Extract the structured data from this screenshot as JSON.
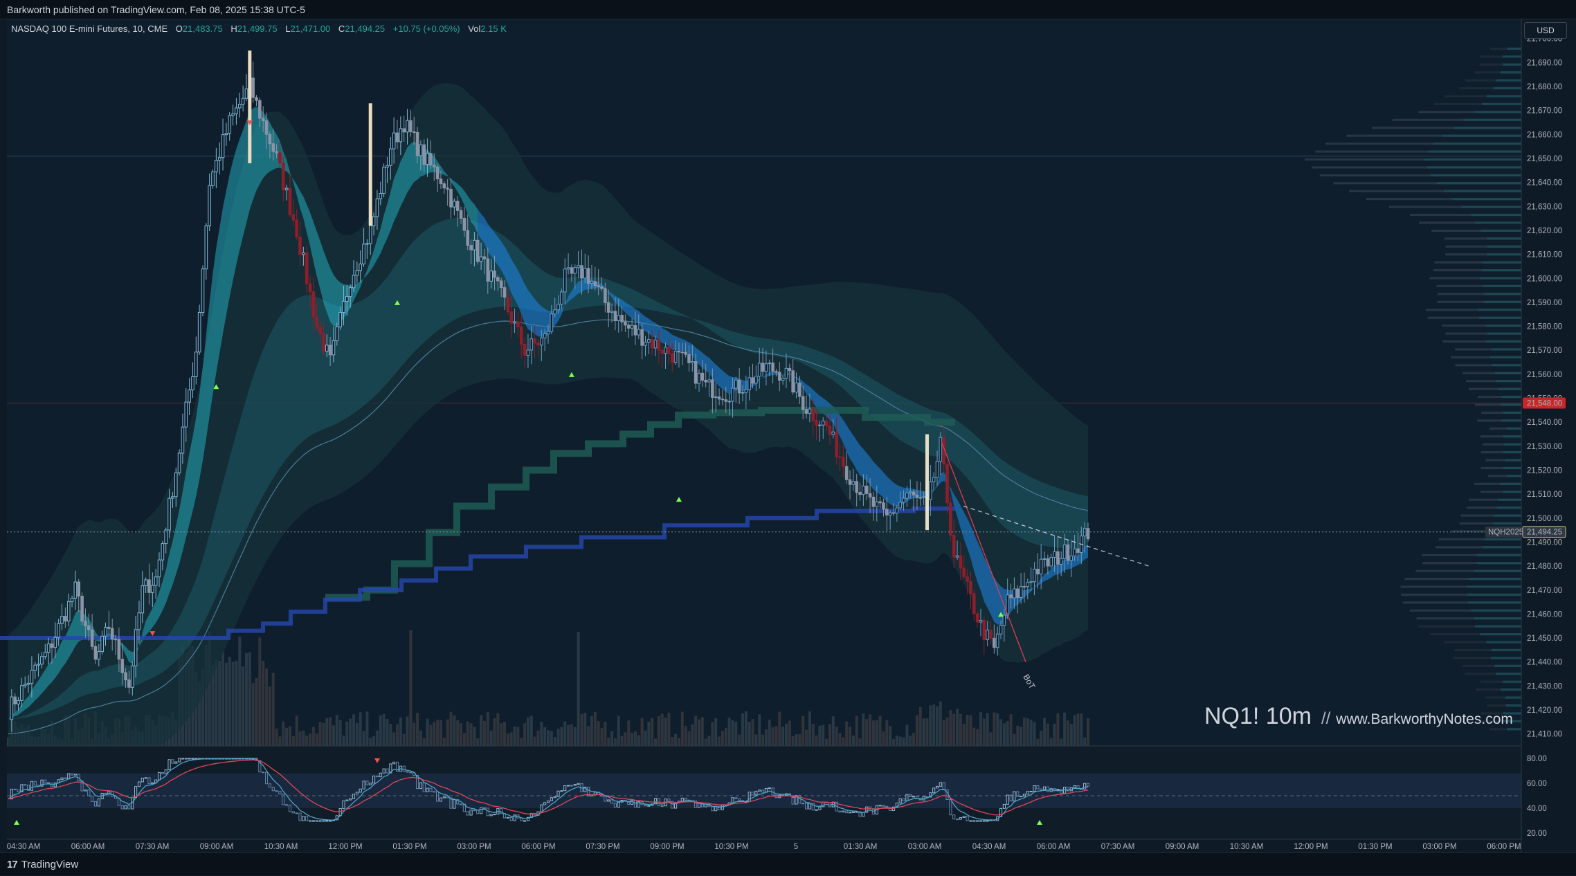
{
  "header": {
    "published": "Barkworth published on TradingView.com, Feb 08, 2025 15:38 UTC-5"
  },
  "legend": {
    "symbol": "NASDAQ 100 E-mini Futures, 10, CME",
    "o_label": "O",
    "o": "21,483.75",
    "h_label": "H",
    "h": "21,499.75",
    "l_label": "L",
    "l": "21,471.00",
    "c_label": "C",
    "c": "21,494.25",
    "change": "+10.75 (+0.05%)",
    "vol_label": "Vol",
    "vol": "2.15 K"
  },
  "currency_button": "USD",
  "watermark": {
    "title": "NQ1! 10m",
    "separator": "//",
    "site": "www.BarkworthyNotes.com"
  },
  "footer": {
    "logo": "17",
    "brand": "TradingView"
  },
  "colors": {
    "background": "#0f1a27",
    "up": "#26c6da",
    "down": "#b71c1c",
    "band_fast": "#1e88e5",
    "band_slow": "#26a69a",
    "last_price_tag": "#c62828"
  },
  "chart_data": [
    {
      "type": "line",
      "subtype": "candlestick",
      "title": "",
      "x_ticks": [
        "04:30 AM",
        "06:00 AM",
        "07:30 AM",
        "09:00 AM",
        "10:30 AM",
        "12:00 PM",
        "01:30 PM",
        "03:00 PM",
        "06:00 PM",
        "07:30 PM",
        "09:00 PM",
        "10:30 PM",
        "5",
        "01:30 AM",
        "03:00 AM",
        "04:30 AM",
        "06:00 AM",
        "07:30 AM",
        "09:00 AM",
        "10:30 AM",
        "12:00 PM",
        "01:30 PM",
        "03:00 PM",
        "06:00 PM"
      ],
      "y_ticks": [
        21700,
        21690,
        21680,
        21670,
        21660,
        21650,
        21640,
        21630,
        21620,
        21610,
        21600,
        21590,
        21580,
        21570,
        21560,
        21550,
        21540,
        21530,
        21520,
        21510,
        21500,
        21490,
        21480,
        21470,
        21460,
        21450,
        21440,
        21430,
        21420,
        21410
      ],
      "y_tick_labels": [
        "21,700.00",
        "21,690.00",
        "21,680.00",
        "21,670.00",
        "21,660.00",
        "21,650.00",
        "21,640.00",
        "21,630.00",
        "21,620.00",
        "21,610.00",
        "21,600.00",
        "21,590.00",
        "21,580.00",
        "21,570.00",
        "21,560.00",
        "21,550.00",
        "21,540.00",
        "21,530.00",
        "21,520.00",
        "21,510.00",
        "21,500.00",
        "21,490.00",
        "21,480.00",
        "21,470.00",
        "21,460.00",
        "21,450.00",
        "21,440.00",
        "21,430.00",
        "21,420.00",
        "21,410.00"
      ],
      "ylim": [
        21405,
        21708
      ],
      "price_path": [
        [
          0,
          21420
        ],
        [
          12,
          21445
        ],
        [
          20,
          21470
        ],
        [
          26,
          21440
        ],
        [
          30,
          21455
        ],
        [
          36,
          21430
        ],
        [
          40,
          21470
        ],
        [
          44,
          21475
        ],
        [
          50,
          21520
        ],
        [
          56,
          21570
        ],
        [
          60,
          21640
        ],
        [
          66,
          21665
        ],
        [
          72,
          21680
        ],
        [
          80,
          21650
        ],
        [
          86,
          21620
        ],
        [
          92,
          21580
        ],
        [
          96,
          21565
        ],
        [
          102,
          21600
        ],
        [
          108,
          21620
        ],
        [
          114,
          21655
        ],
        [
          118,
          21665
        ],
        [
          124,
          21650
        ],
        [
          130,
          21640
        ],
        [
          136,
          21620
        ],
        [
          142,
          21605
        ],
        [
          148,
          21590
        ],
        [
          154,
          21570
        ],
        [
          160,
          21575
        ],
        [
          166,
          21600
        ],
        [
          172,
          21603
        ],
        [
          178,
          21590
        ],
        [
          184,
          21580
        ],
        [
          190,
          21575
        ],
        [
          196,
          21570
        ],
        [
          202,
          21565
        ],
        [
          208,
          21555
        ],
        [
          214,
          21552
        ],
        [
          220,
          21556
        ],
        [
          226,
          21563
        ],
        [
          232,
          21560
        ],
        [
          238,
          21546
        ],
        [
          244,
          21538
        ],
        [
          250,
          21520
        ],
        [
          256,
          21508
        ],
        [
          262,
          21500
        ],
        [
          268,
          21510
        ],
        [
          274,
          21505
        ],
        [
          278,
          21530
        ],
        [
          282,
          21485
        ],
        [
          286,
          21470
        ],
        [
          290,
          21455
        ],
        [
          294,
          21445
        ],
        [
          298,
          21465
        ],
        [
          302,
          21470
        ],
        [
          306,
          21478
        ],
        [
          312,
          21483
        ],
        [
          318,
          21488
        ],
        [
          322,
          21494
        ]
      ],
      "last_price": 21494.25,
      "last_price_label": "21,494.25",
      "symbol_tag": "NQH2025",
      "price_tag_red": 21548.0,
      "price_tag_red_label": "21,548.00",
      "annotation": "BoT",
      "oscillator": {
        "y_ticks": [
          80,
          60,
          40,
          20
        ],
        "y_tick_labels": [
          "80.00",
          "60.00",
          "40.00",
          "20.00"
        ],
        "ylim": [
          15,
          90
        ],
        "band": [
          40,
          68
        ]
      }
    }
  ]
}
